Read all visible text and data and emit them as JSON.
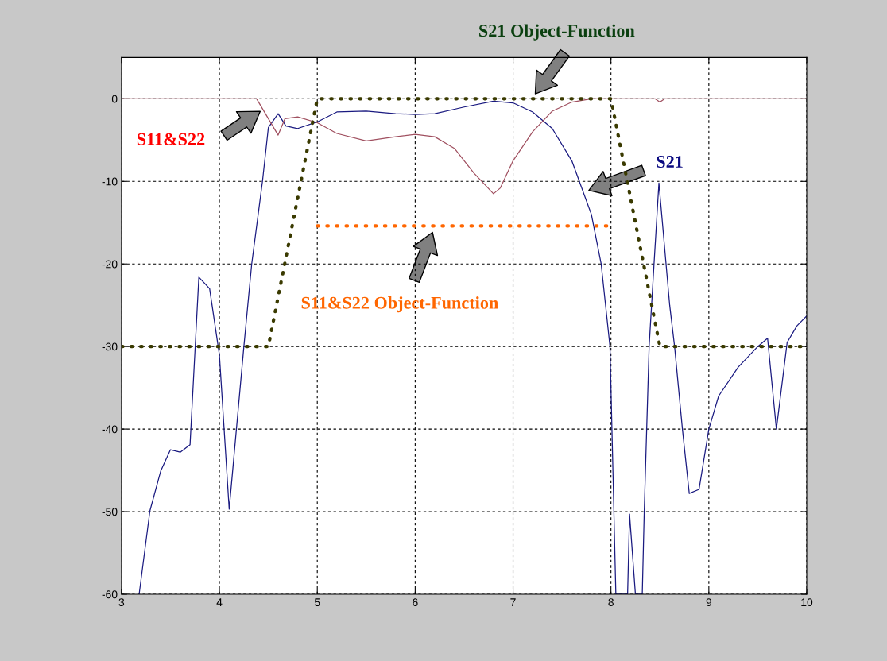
{
  "chart_data": {
    "type": "line",
    "xlim": [
      3,
      10
    ],
    "ylim": [
      -60,
      5
    ],
    "xticks": [
      3,
      4,
      5,
      6,
      7,
      8,
      9,
      10
    ],
    "yticks": [
      -60,
      -50,
      -40,
      -30,
      -20,
      -10,
      0
    ],
    "grid": true,
    "marker": "none",
    "series": [
      {
        "color": "#1a1a80",
        "line_style": "solid",
        "x": [
          3.18,
          3.29,
          3.4,
          3.5,
          3.6,
          3.7,
          3.79,
          3.9,
          4.0,
          4.1,
          4.25,
          4.33,
          4.44,
          4.5,
          4.6,
          4.68,
          4.8,
          5.0,
          5.2,
          5.5,
          5.8,
          6.0,
          6.2,
          6.5,
          6.8,
          7.0,
          7.2,
          7.4,
          7.6,
          7.8,
          7.9,
          7.99,
          8.02,
          8.05,
          8.17,
          8.19,
          8.25,
          8.32,
          8.34,
          8.39,
          8.44,
          8.49,
          8.6,
          8.65,
          8.73,
          8.8,
          8.9,
          9.0,
          9.1,
          9.3,
          9.5,
          9.6,
          9.69,
          9.8,
          9.9,
          10.0
        ],
        "values": [
          -60,
          -49.9,
          -45.1,
          -42.5,
          -42.8,
          -41.9,
          -21.6,
          -23,
          -31,
          -49.7,
          -30,
          -20,
          -10,
          -3.5,
          -1.8,
          -3.3,
          -3.6,
          -2.8,
          -1.6,
          -1.5,
          -1.8,
          -1.9,
          -1.8,
          -1.0,
          -0.3,
          -0.5,
          -1.6,
          -3.6,
          -7.5,
          -14,
          -20,
          -30,
          -45,
          -60,
          -60,
          -50.3,
          -60,
          -60,
          -50,
          -30,
          -20,
          -10.2,
          -25,
          -30,
          -40,
          -47.8,
          -47.3,
          -40,
          -36,
          -32.5,
          -30,
          -29,
          -40,
          -29.5,
          -27.5,
          -26.3
        ]
      },
      {
        "color": "#a05060",
        "line_style": "solid",
        "x": [
          3,
          4.38,
          4.6,
          4.67,
          4.8,
          5.0,
          5.2,
          5.5,
          5.8,
          6.0,
          6.2,
          6.4,
          6.6,
          6.8,
          6.87,
          7.0,
          7.2,
          7.4,
          7.6,
          7.8,
          8.45,
          8.5,
          8.55,
          10
        ],
        "values": [
          0,
          0,
          -4.4,
          -2.4,
          -2.2,
          -2.9,
          -4.2,
          -5.1,
          -4.6,
          -4.3,
          -4.6,
          -6,
          -9,
          -11.5,
          -10.8,
          -7.5,
          -4,
          -1.5,
          -0.4,
          0,
          0,
          -0.4,
          0,
          0
        ]
      },
      {
        "color": "#3a3a00",
        "line_style": "dotted",
        "x": [
          3,
          4.5,
          5,
          8,
          8.5,
          10
        ],
        "values": [
          -30,
          -30,
          0,
          0,
          -30,
          -30
        ]
      },
      {
        "color": "#ff6600",
        "line_style": "dotted",
        "x": [
          5,
          8
        ],
        "values": [
          -15.4,
          -15.4
        ]
      }
    ],
    "annotations": [
      "S11&S22",
      "S21 Object-Function",
      "S21",
      "S11&S22 Object-Function"
    ]
  }
}
